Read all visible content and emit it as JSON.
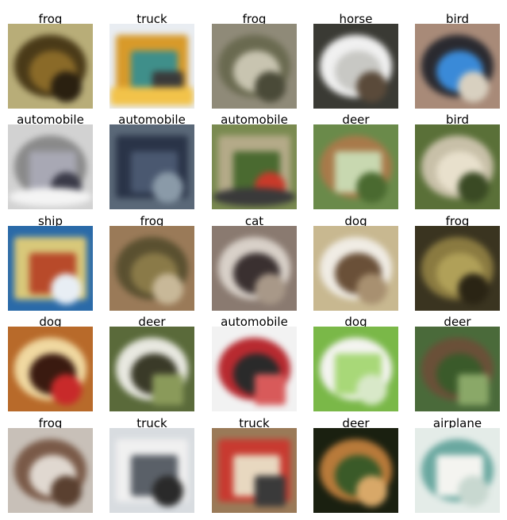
{
  "grid": {
    "columns": 5,
    "rows": 5,
    "cells": [
      {
        "label": "frog",
        "bg": "#b8ad78",
        "blobs": [
          {
            "c": "#4a3a18",
            "shape": "ellipse"
          },
          {
            "c": "#8a6a28",
            "shape": "ellipse"
          },
          {
            "c": "#2a2010",
            "shape": "ellipse"
          }
        ]
      },
      {
        "label": "truck",
        "bg": "#e9edf2",
        "blobs": [
          {
            "c": "#d89a2a",
            "shape": "rect"
          },
          {
            "c": "#3f8f8a",
            "shape": "rect"
          },
          {
            "c": "#3a3a3a",
            "shape": "rect"
          },
          {
            "c": "#f2c34a",
            "shape": "rect"
          }
        ]
      },
      {
        "label": "frog",
        "bg": "#8f8a78",
        "blobs": [
          {
            "c": "#6a6a50",
            "shape": "ellipse"
          },
          {
            "c": "#c8c4b0",
            "shape": "ellipse"
          },
          {
            "c": "#4a4a38",
            "shape": "ellipse"
          }
        ]
      },
      {
        "label": "horse",
        "bg": "#3a3a34",
        "blobs": [
          {
            "c": "#f0f0f0",
            "shape": "ellipse"
          },
          {
            "c": "#c8c8c4",
            "shape": "ellipse"
          },
          {
            "c": "#5a4a3a",
            "shape": "ellipse"
          }
        ]
      },
      {
        "label": "bird",
        "bg": "#a88a78",
        "blobs": [
          {
            "c": "#2a2a30",
            "shape": "ellipse"
          },
          {
            "c": "#3a8ad8",
            "shape": "ellipse"
          },
          {
            "c": "#d8d0c0",
            "shape": "ellipse"
          }
        ]
      },
      {
        "label": "automobile",
        "bg": "#d2d2d2",
        "blobs": [
          {
            "c": "#8a8a8a",
            "shape": "ellipse"
          },
          {
            "c": "#a8a8b4",
            "shape": "rect"
          },
          {
            "c": "#3a3a48",
            "shape": "ellipse"
          },
          {
            "c": "#f4f4f4",
            "shape": "ellipse"
          }
        ]
      },
      {
        "label": "automobile",
        "bg": "#5a6878",
        "blobs": [
          {
            "c": "#2a3448",
            "shape": "rect"
          },
          {
            "c": "#4a5870",
            "shape": "rect"
          },
          {
            "c": "#8a9aa8",
            "shape": "ellipse"
          }
        ]
      },
      {
        "label": "automobile",
        "bg": "#7a8a50",
        "blobs": [
          {
            "c": "#b4aa88",
            "shape": "rect"
          },
          {
            "c": "#4a6a30",
            "shape": "rect"
          },
          {
            "c": "#c83a2a",
            "shape": "ellipse"
          },
          {
            "c": "#3a3a3a",
            "shape": "ellipse"
          }
        ]
      },
      {
        "label": "deer",
        "bg": "#6a8a4a",
        "blobs": [
          {
            "c": "#a87a4a",
            "shape": "ellipse"
          },
          {
            "c": "#c8d8b0",
            "shape": "rect"
          },
          {
            "c": "#4a6a30",
            "shape": "ellipse"
          }
        ]
      },
      {
        "label": "bird",
        "bg": "#5a7038",
        "blobs": [
          {
            "c": "#c8c0a8",
            "shape": "ellipse"
          },
          {
            "c": "#e8e0cc",
            "shape": "ellipse"
          },
          {
            "c": "#3a4a24",
            "shape": "ellipse"
          }
        ]
      },
      {
        "label": "ship",
        "bg": "#2a6aa8",
        "blobs": [
          {
            "c": "#d8c87a",
            "shape": "rect"
          },
          {
            "c": "#b84a2a",
            "shape": "rect"
          },
          {
            "c": "#e8eef4",
            "shape": "ellipse"
          }
        ]
      },
      {
        "label": "frog",
        "bg": "#9a7a58",
        "blobs": [
          {
            "c": "#5a5030",
            "shape": "ellipse"
          },
          {
            "c": "#8a7a48",
            "shape": "ellipse"
          },
          {
            "c": "#c8b898",
            "shape": "ellipse"
          }
        ]
      },
      {
        "label": "cat",
        "bg": "#8a7a70",
        "blobs": [
          {
            "c": "#d8d0c8",
            "shape": "ellipse"
          },
          {
            "c": "#3a3030",
            "shape": "ellipse"
          },
          {
            "c": "#a89888",
            "shape": "ellipse"
          }
        ]
      },
      {
        "label": "dog",
        "bg": "#c8b890",
        "blobs": [
          {
            "c": "#f0ece4",
            "shape": "ellipse"
          },
          {
            "c": "#6a5038",
            "shape": "ellipse"
          },
          {
            "c": "#a89070",
            "shape": "ellipse"
          }
        ]
      },
      {
        "label": "frog",
        "bg": "#3a3420",
        "blobs": [
          {
            "c": "#8a7a40",
            "shape": "ellipse"
          },
          {
            "c": "#b0a058",
            "shape": "ellipse"
          },
          {
            "c": "#2a2414",
            "shape": "ellipse"
          }
        ]
      },
      {
        "label": "dog",
        "bg": "#b86a2a",
        "blobs": [
          {
            "c": "#f0d8a0",
            "shape": "ellipse"
          },
          {
            "c": "#3a1a10",
            "shape": "ellipse"
          },
          {
            "c": "#c82a2a",
            "shape": "ellipse"
          }
        ]
      },
      {
        "label": "deer",
        "bg": "#5a6a3a",
        "blobs": [
          {
            "c": "#e8e8e0",
            "shape": "ellipse"
          },
          {
            "c": "#3a3a28",
            "shape": "ellipse"
          },
          {
            "c": "#8a9a5a",
            "shape": "rect"
          }
        ]
      },
      {
        "label": "automobile",
        "bg": "#f2f2f2",
        "blobs": [
          {
            "c": "#b82a30",
            "shape": "ellipse"
          },
          {
            "c": "#2a2a2a",
            "shape": "ellipse"
          },
          {
            "c": "#d85a5a",
            "shape": "rect"
          }
        ]
      },
      {
        "label": "dog",
        "bg": "#7ab848",
        "blobs": [
          {
            "c": "#f4f4f0",
            "shape": "ellipse"
          },
          {
            "c": "#a8d878",
            "shape": "rect"
          },
          {
            "c": "#d8e8c8",
            "shape": "ellipse"
          }
        ]
      },
      {
        "label": "deer",
        "bg": "#4a6a3a",
        "blobs": [
          {
            "c": "#6a5038",
            "shape": "ellipse"
          },
          {
            "c": "#3a5a2a",
            "shape": "ellipse"
          },
          {
            "c": "#8aa868",
            "shape": "rect"
          }
        ]
      },
      {
        "label": "frog",
        "bg": "#c8c0b8",
        "blobs": [
          {
            "c": "#7a5a48",
            "shape": "ellipse"
          },
          {
            "c": "#e0d8d0",
            "shape": "ellipse"
          },
          {
            "c": "#5a4030",
            "shape": "ellipse"
          }
        ]
      },
      {
        "label": "truck",
        "bg": "#d8dce0",
        "blobs": [
          {
            "c": "#f0f0f0",
            "shape": "rect"
          },
          {
            "c": "#5a6068",
            "shape": "rect"
          },
          {
            "c": "#2a2a2a",
            "shape": "ellipse"
          }
        ]
      },
      {
        "label": "truck",
        "bg": "#9a7a58",
        "blobs": [
          {
            "c": "#c83a30",
            "shape": "rect"
          },
          {
            "c": "#e8d8c0",
            "shape": "rect"
          },
          {
            "c": "#3a3a3a",
            "shape": "rect"
          }
        ]
      },
      {
        "label": "deer",
        "bg": "#1a2010",
        "blobs": [
          {
            "c": "#b87a3a",
            "shape": "ellipse"
          },
          {
            "c": "#3a5a28",
            "shape": "ellipse"
          },
          {
            "c": "#d8a868",
            "shape": "ellipse"
          }
        ]
      },
      {
        "label": "airplane",
        "bg": "#e4ece8",
        "blobs": [
          {
            "c": "#6aa8a0",
            "shape": "ellipse"
          },
          {
            "c": "#f4f4f0",
            "shape": "rect"
          },
          {
            "c": "#c8d8d0",
            "shape": "ellipse"
          }
        ]
      }
    ]
  }
}
